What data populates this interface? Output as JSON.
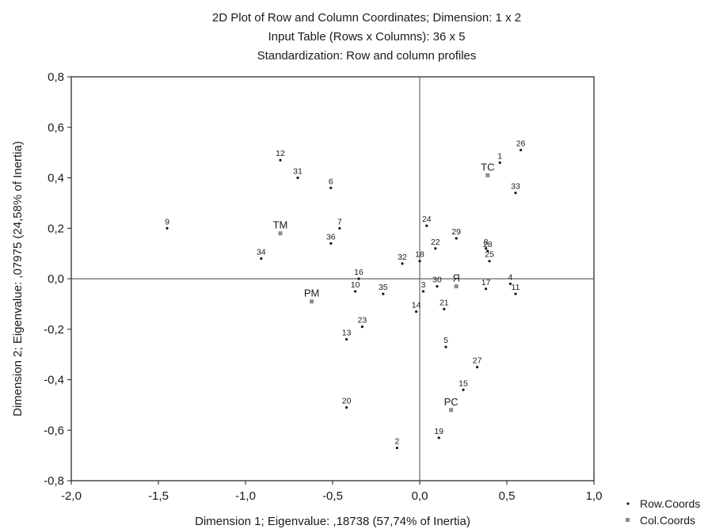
{
  "chart_data": {
    "type": "scatter",
    "title_lines": [
      "2D Plot of Row and Column Coordinates; Dimension:  1 x  2",
      "Input Table (Rows x Columns): 36 x 5",
      "Standardization: Row and column profiles"
    ],
    "xlabel": "Dimension 1; Eigenvalue: ,18738 (57,74% of Inertia)",
    "ylabel": "Dimension 2; Eigenvalue: ,07975 (24,58% of Inertia)",
    "xlim": [
      -2.0,
      1.0
    ],
    "ylim": [
      -0.8,
      0.8
    ],
    "x_ticks": [
      "-2,0",
      "-1,5",
      "-1,0",
      "-0,5",
      "0,0",
      "0,5",
      "1,0"
    ],
    "y_ticks": [
      "0,8",
      "0,6",
      "0,4",
      "0,2",
      "0,0",
      "-0,2",
      "-0,4",
      "-0,6",
      "-0,8"
    ],
    "grid": false,
    "reference_lines": {
      "x": 0.0,
      "y": 0.0
    },
    "legend_position": "bottom-right",
    "series": [
      {
        "name": "Row.Coords",
        "marker": "dot",
        "color": "#1a1a1a",
        "points": [
          {
            "label": "1",
            "x": 0.46,
            "y": 0.46
          },
          {
            "label": "2",
            "x": -0.13,
            "y": -0.67
          },
          {
            "label": "3",
            "x": 0.02,
            "y": -0.05
          },
          {
            "label": "4",
            "x": 0.52,
            "y": -0.02
          },
          {
            "label": "5",
            "x": 0.15,
            "y": -0.27
          },
          {
            "label": "6",
            "x": -0.51,
            "y": 0.36
          },
          {
            "label": "7",
            "x": -0.46,
            "y": 0.2
          },
          {
            "label": "8",
            "x": 0.38,
            "y": 0.12
          },
          {
            "label": "9",
            "x": -1.45,
            "y": 0.2
          },
          {
            "label": "10",
            "x": -0.37,
            "y": -0.05
          },
          {
            "label": "11",
            "x": 0.55,
            "y": -0.06
          },
          {
            "label": "12",
            "x": -0.8,
            "y": 0.47
          },
          {
            "label": "13",
            "x": -0.42,
            "y": -0.24
          },
          {
            "label": "14",
            "x": -0.02,
            "y": -0.13
          },
          {
            "label": "15",
            "x": 0.25,
            "y": -0.44
          },
          {
            "label": "16",
            "x": -0.35,
            "y": 0.0
          },
          {
            "label": "17",
            "x": 0.38,
            "y": -0.04
          },
          {
            "label": "18",
            "x": 0.0,
            "y": 0.07
          },
          {
            "label": "19",
            "x": 0.11,
            "y": -0.63
          },
          {
            "label": "20",
            "x": -0.42,
            "y": -0.51
          },
          {
            "label": "21",
            "x": 0.14,
            "y": -0.12
          },
          {
            "label": "22",
            "x": 0.09,
            "y": 0.12
          },
          {
            "label": "23",
            "x": -0.33,
            "y": -0.19
          },
          {
            "label": "24",
            "x": 0.04,
            "y": 0.21
          },
          {
            "label": "25",
            "x": 0.4,
            "y": 0.07
          },
          {
            "label": "26",
            "x": 0.58,
            "y": 0.51
          },
          {
            "label": "27",
            "x": 0.33,
            "y": -0.35
          },
          {
            "label": "28",
            "x": 0.39,
            "y": 0.11
          },
          {
            "label": "29",
            "x": 0.21,
            "y": 0.16
          },
          {
            "label": "30",
            "x": 0.1,
            "y": -0.03
          },
          {
            "label": "31",
            "x": -0.7,
            "y": 0.4
          },
          {
            "label": "32",
            "x": -0.1,
            "y": 0.06
          },
          {
            "label": "33",
            "x": 0.55,
            "y": 0.34
          },
          {
            "label": "34",
            "x": -0.91,
            "y": 0.08
          },
          {
            "label": "35",
            "x": -0.21,
            "y": -0.06
          },
          {
            "label": "36",
            "x": -0.51,
            "y": 0.14
          }
        ]
      },
      {
        "name": "Col.Coords",
        "marker": "square",
        "color": "#8c8c8c",
        "points": [
          {
            "label": "TC",
            "x": 0.39,
            "y": 0.41
          },
          {
            "label": "TM",
            "x": -0.8,
            "y": 0.18
          },
          {
            "label": "PM",
            "x": -0.62,
            "y": -0.09
          },
          {
            "label": "Я",
            "x": 0.21,
            "y": -0.03
          },
          {
            "label": "PC",
            "x": 0.18,
            "y": -0.52
          }
        ]
      }
    ]
  }
}
